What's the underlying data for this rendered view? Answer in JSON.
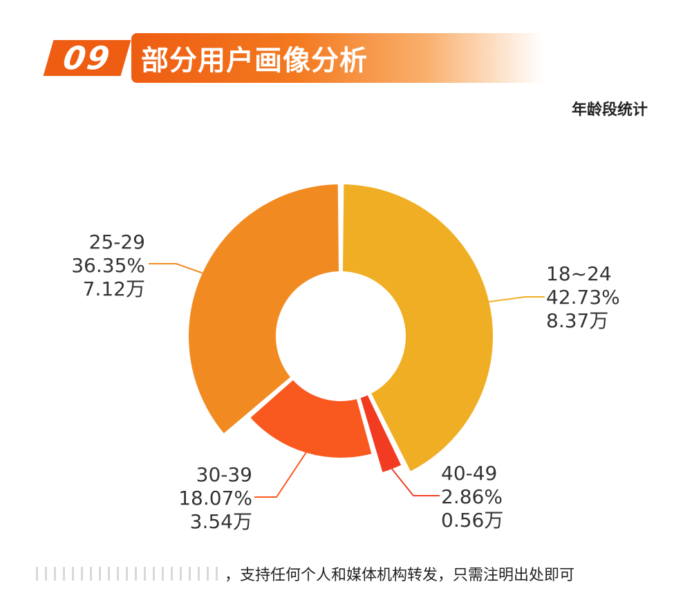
{
  "header": {
    "section_number": "09",
    "title": "部分用户画像分析",
    "subtitle": "年龄段统计"
  },
  "chart_data": {
    "type": "pie",
    "subtitle": "年龄段统计",
    "slices": [
      {
        "label": "18~24",
        "percent": 42.73,
        "percent_text": "42.73%",
        "count_text": "8.37万",
        "color": "#f0ae24"
      },
      {
        "label": "40-49",
        "percent": 2.86,
        "percent_text": "2.86%",
        "count_text": "0.56万",
        "color": "#f13c22"
      },
      {
        "label": "30-39",
        "percent": 18.07,
        "percent_text": "18.07%",
        "count_text": "3.54万",
        "color": "#f9591f"
      },
      {
        "label": "25-29",
        "percent": 36.35,
        "percent_text": "36.35%",
        "count_text": "7.12万",
        "color": "#f28a22"
      }
    ]
  },
  "footer": {
    "text": "，支持任何个人和媒体机构转发，只需注明出处即可"
  }
}
